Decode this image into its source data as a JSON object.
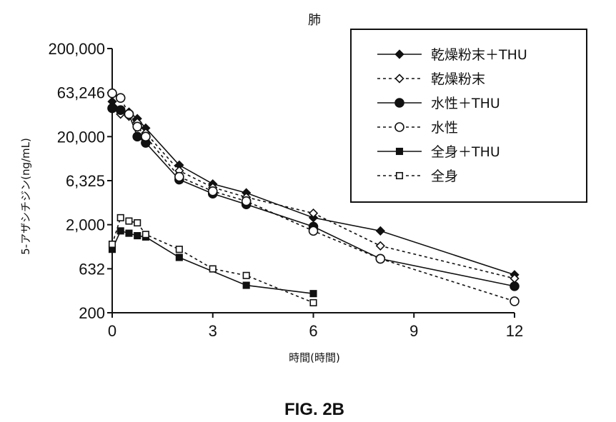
{
  "figure": {
    "caption": "FIG. 2B"
  },
  "chart_data": {
    "type": "line",
    "title": "肺",
    "xlabel": "時間(時間)",
    "ylabel": "5-アザシチジン(ng/mL)",
    "yscale": "log",
    "xlim": [
      0,
      12
    ],
    "ylim": [
      200,
      200000
    ],
    "x_ticks": [
      0,
      3,
      6,
      9,
      12
    ],
    "x_tick_labels": [
      "0",
      "3",
      "6",
      "9",
      "12"
    ],
    "y_ticks": [
      200,
      632,
      2000,
      6325,
      20000,
      63246,
      200000
    ],
    "y_tick_labels": [
      "200",
      "632",
      "2,000",
      "6,325",
      "20,000",
      "63,246",
      "200,000"
    ],
    "legend_position": "top-right",
    "grid": false,
    "series": [
      {
        "name": "乾燥粉末＋THU",
        "marker": "diamond",
        "fill": "filled",
        "dash": "solid",
        "x": [
          0,
          0.25,
          0.5,
          0.75,
          1,
          2,
          3,
          4,
          6,
          8,
          12
        ],
        "y": [
          50000,
          40000,
          38000,
          32000,
          25000,
          9500,
          5800,
          4600,
          2400,
          1700,
          540
        ]
      },
      {
        "name": "乾燥粉末",
        "marker": "diamond",
        "fill": "open",
        "dash": "dashed",
        "x": [
          0,
          0.25,
          0.5,
          0.75,
          1,
          2,
          3,
          4,
          6,
          8,
          12
        ],
        "y": [
          42000,
          36000,
          34000,
          29000,
          22000,
          8200,
          5300,
          4100,
          2700,
          1150,
          490
        ]
      },
      {
        "name": "水性＋THU",
        "marker": "circle",
        "fill": "filled",
        "dash": "solid",
        "x": [
          0,
          0.25,
          0.5,
          0.75,
          1,
          2,
          3,
          4,
          6,
          8,
          12
        ],
        "y": [
          42000,
          40000,
          36000,
          20000,
          17000,
          6500,
          4500,
          3400,
          1900,
          820,
          400
        ]
      },
      {
        "name": "水性",
        "marker": "circle",
        "fill": "open",
        "dash": "dashed",
        "x": [
          0,
          0.25,
          0.5,
          0.75,
          1,
          2,
          3,
          4,
          6,
          8,
          12
        ],
        "y": [
          62000,
          55000,
          36000,
          26000,
          20000,
          7000,
          4800,
          3700,
          1700,
          820,
          270
        ]
      },
      {
        "name": "全身＋THU",
        "marker": "square",
        "fill": "filled",
        "dash": "solid",
        "x": [
          0,
          0.25,
          0.5,
          0.75,
          1,
          2,
          4,
          6
        ],
        "y": [
          1050,
          1700,
          1600,
          1500,
          1450,
          850,
          410,
          330
        ]
      },
      {
        "name": "全身",
        "marker": "square",
        "fill": "open",
        "dash": "dashed",
        "x": [
          0,
          0.25,
          0.5,
          0.75,
          1,
          2,
          3,
          4,
          6
        ],
        "y": [
          1200,
          2400,
          2200,
          2100,
          1550,
          1050,
          630,
          530,
          260
        ]
      }
    ]
  }
}
